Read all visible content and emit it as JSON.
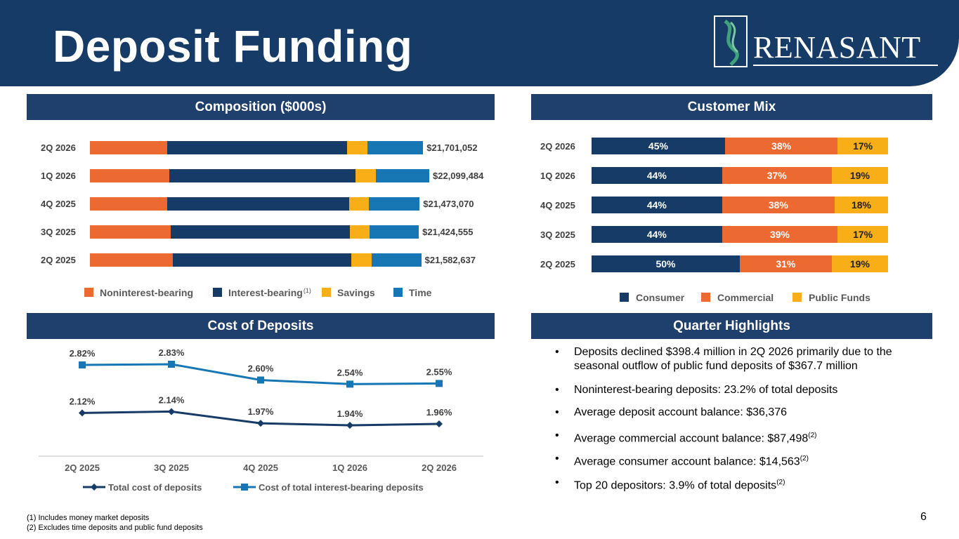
{
  "page": {
    "title": "Deposit Funding",
    "page_number": "6"
  },
  "logo": {
    "text": "RENASANT"
  },
  "composition": {
    "header": "Composition ($000s)",
    "legend_superscript": "(1)",
    "colors": {
      "noninterest": "#ec6a31",
      "interest": "#163b66",
      "savings": "#f7ae17",
      "time": "#1777b4"
    }
  },
  "customer_mix": {
    "header": "Customer Mix",
    "colors": {
      "consumer": "#163b66",
      "commercial": "#ec6a31",
      "public": "#f7ae17"
    }
  },
  "cost": {
    "header": "Cost of Deposits",
    "colors": {
      "total": "#163b66",
      "interest_bearing": "#1777b4"
    }
  },
  "highlights": {
    "header": "Quarter Highlights",
    "bullet_char": "•",
    "items": [
      {
        "text": "Deposits declined $398.4 million in 2Q 2026 primarily due to the seasonal outflow of public fund deposits of $367.7 million",
        "sup": ""
      },
      {
        "text": "Noninterest-bearing deposits: 23.2% of total deposits",
        "sup": ""
      },
      {
        "text": "Average deposit account balance: $36,376",
        "sup": ""
      },
      {
        "text": "Average commercial account balance: $87,498",
        "sup": "(2)"
      },
      {
        "text": "Average consumer account balance: $14,563",
        "sup": "(2)"
      },
      {
        "text": "Top 20 depositors: 3.9% of total deposits",
        "sup": "(2)"
      }
    ]
  },
  "footnotes": [
    "(1) Includes money market deposits",
    "(2) Excludes time deposits and public fund deposits"
  ],
  "chart_data": [
    {
      "type": "bar",
      "orientation": "horizontal",
      "stacked": true,
      "categories": [
        "2Q 2026",
        "1Q 2026",
        "4Q 2025",
        "3Q 2025",
        "2Q 2025"
      ],
      "series": [
        {
          "name": "Noninterest-bearing",
          "values": [
            5030000,
            5180000,
            5040000,
            5240000,
            5410000
          ]
        },
        {
          "name": "Interest-bearing",
          "values": [
            11720000,
            12130000,
            11850000,
            11690000,
            11610000
          ]
        },
        {
          "name": "Savings",
          "values": [
            1330000,
            1330000,
            1280000,
            1290000,
            1330000
          ]
        },
        {
          "name": "Time",
          "values": [
            3620000,
            3460000,
            3300000,
            3200000,
            3230000
          ]
        }
      ],
      "totals": [
        "$21,701,052",
        "$22,099,484",
        "$21,473,070",
        "$21,424,555",
        "$21,582,637"
      ],
      "xlim": [
        0,
        22099484
      ],
      "legend": "bottom"
    },
    {
      "type": "bar",
      "orientation": "horizontal",
      "stacked": true,
      "percent": true,
      "categories": [
        "2Q 2026",
        "1Q 2026",
        "4Q 2025",
        "3Q 2025",
        "2Q 2025"
      ],
      "series": [
        {
          "name": "Consumer",
          "values": [
            45,
            44,
            44,
            44,
            50
          ],
          "labels": [
            "45%",
            "44%",
            "44%",
            "44%",
            "50%"
          ]
        },
        {
          "name": "Commercial",
          "values": [
            38,
            37,
            38,
            39,
            31
          ],
          "labels": [
            "38%",
            "37%",
            "38%",
            "39%",
            "31%"
          ]
        },
        {
          "name": "Public Funds",
          "values": [
            17,
            19,
            18,
            17,
            19
          ],
          "labels": [
            "17%",
            "19%",
            "18%",
            "17%",
            "19%"
          ]
        }
      ],
      "legend": "bottom"
    },
    {
      "type": "line",
      "categories": [
        "2Q 2025",
        "3Q 2025",
        "4Q 2025",
        "1Q 2026",
        "2Q 2026"
      ],
      "series": [
        {
          "name": "Total cost of deposits",
          "values": [
            2.12,
            2.14,
            1.97,
            1.94,
            1.96
          ],
          "labels": [
            "2.12%",
            "2.14%",
            "1.97%",
            "1.94%",
            "1.96%"
          ]
        },
        {
          "name": "Cost of total interest-bearing deposits",
          "values": [
            2.82,
            2.83,
            2.6,
            2.54,
            2.55
          ],
          "labels": [
            "2.82%",
            "2.83%",
            "2.60%",
            "2.54%",
            "2.55%"
          ]
        }
      ],
      "legend": "bottom"
    }
  ]
}
